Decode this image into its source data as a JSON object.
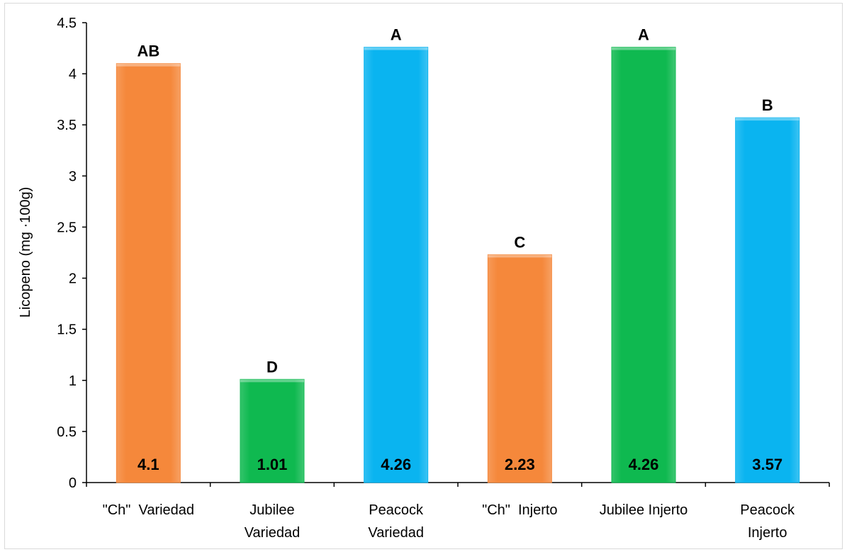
{
  "chart_data": {
    "type": "bar",
    "categories": [
      [
        "\"Ch\"  Variedad"
      ],
      [
        "Jubilee",
        "Variedad"
      ],
      [
        "Peacock",
        "Variedad"
      ],
      [
        "\"Ch\"  Injerto"
      ],
      [
        "Jubilee Injerto"
      ],
      [
        "Peacock",
        "Injerto"
      ]
    ],
    "values": [
      4.1,
      1.01,
      4.26,
      2.23,
      4.26,
      3.57
    ],
    "value_labels": [
      "4.1",
      "1.01",
      "4.26",
      "2.23",
      "4.26",
      "3.57"
    ],
    "significance_letters": [
      "AB",
      "D",
      "A",
      "C",
      "A",
      "B"
    ],
    "bar_colors": [
      "#f5883b",
      "#0fb950",
      "#0ab4f0",
      "#f5883b",
      "#0fb950",
      "#0ab4f0"
    ],
    "ylabel": "Licopeno (mg ·100g)",
    "xlabel": "",
    "ylim": [
      0,
      4.5
    ],
    "yticks": [
      "0",
      "0.5",
      "1",
      "1.5",
      "2",
      "2.5",
      "3",
      "3.5",
      "4",
      "4.5"
    ],
    "grid": false,
    "legend": "none"
  }
}
